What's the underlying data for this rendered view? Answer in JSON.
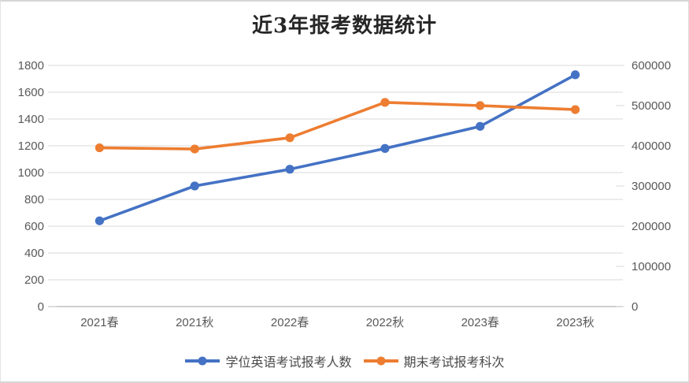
{
  "title": "近3年报考数据统计",
  "chart_data": {
    "type": "line",
    "title": "近3年报考数据统计",
    "categories": [
      "2021春",
      "2021秋",
      "2022春",
      "2022秋",
      "2023春",
      "2023秋"
    ],
    "series": [
      {
        "name": "学位英语考试报考人数",
        "yaxis": "left",
        "color": "#4472C4",
        "values": [
          640,
          900,
          1025,
          1180,
          1345,
          1730
        ]
      },
      {
        "name": "期末考试报考科次",
        "yaxis": "right",
        "color": "#ED7D31",
        "values": [
          395000,
          392000,
          420000,
          508000,
          500000,
          490000
        ]
      }
    ],
    "left_axis": {
      "min": 0,
      "max": 1800,
      "step": 200,
      "tick_labels": [
        "0",
        "200",
        "400",
        "600",
        "800",
        "1000",
        "1200",
        "1400",
        "1600",
        "1800"
      ]
    },
    "right_axis": {
      "min": 0,
      "max": 600000,
      "step": 100000,
      "tick_labels": [
        "0",
        "100000",
        "200000",
        "300000",
        "400000",
        "500000",
        "600000"
      ]
    },
    "grid": true,
    "legend_position": "bottom"
  },
  "colors": {
    "gridline": "#D9D9D9",
    "axis_line": "#BFBFBF",
    "tick_mark": "#D9D9D9",
    "axis_label": "#595959",
    "title_text": "#262626",
    "legend_text": "#4a4a4a",
    "background": "#FFFFFF"
  }
}
